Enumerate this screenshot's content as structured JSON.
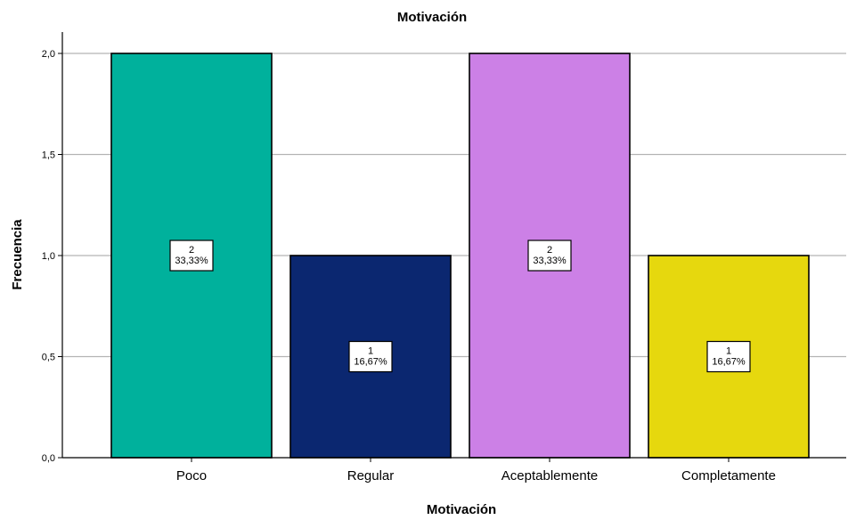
{
  "chart_data": {
    "type": "bar",
    "title": "Motivación",
    "xlabel": "Motivación",
    "ylabel": "Frecuencia",
    "categories": [
      "Poco",
      "Regular",
      "Aceptablemente",
      "Completamente"
    ],
    "values": [
      2,
      1,
      2,
      1
    ],
    "data_labels": [
      {
        "count": "2",
        "percent": "33,33%"
      },
      {
        "count": "1",
        "percent": "16,67%"
      },
      {
        "count": "2",
        "percent": "33,33%"
      },
      {
        "count": "1",
        "percent": "16,67%"
      }
    ],
    "colors": [
      "#00b19c",
      "#0b2770",
      "#cc80e6",
      "#e6d80e"
    ],
    "ylim": [
      0,
      2
    ],
    "yticks": [
      "0,0",
      "0,5",
      "1,0",
      "1,5",
      "2,0"
    ],
    "grid": true,
    "legend": false
  }
}
